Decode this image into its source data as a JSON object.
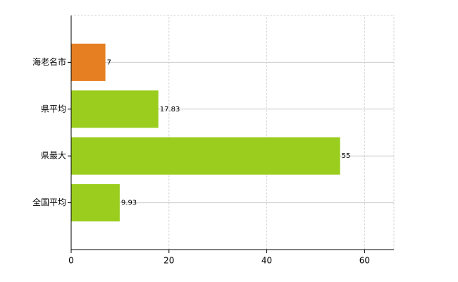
{
  "chart_data": {
    "type": "bar",
    "orientation": "horizontal",
    "categories": [
      "海老名市",
      "県平均",
      "県最大",
      "全国平均"
    ],
    "values": [
      7,
      17.83,
      55,
      9.93
    ],
    "colors": [
      "#e67e22",
      "#9acd1e",
      "#9acd1e",
      "#9acd1e"
    ],
    "xlim": [
      0,
      66
    ],
    "xticks": [
      0,
      20,
      40,
      60
    ],
    "grid": true
  }
}
